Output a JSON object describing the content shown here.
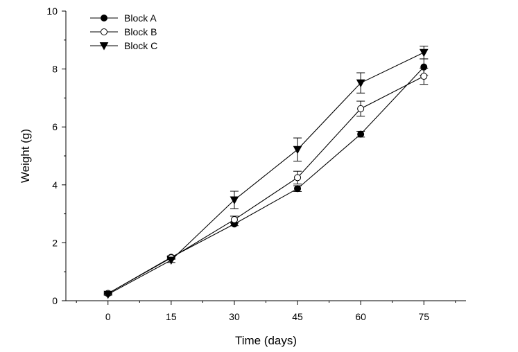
{
  "chart_data": {
    "type": "line",
    "title": "",
    "xlabel": "Time (days)",
    "ylabel": "Weight (g)",
    "x": [
      0,
      15,
      30,
      45,
      60,
      75
    ],
    "xlim": [
      -10,
      85
    ],
    "ylim": [
      0,
      10
    ],
    "xticks": [
      0,
      15,
      30,
      45,
      60,
      75
    ],
    "yticks": [
      0,
      2,
      4,
      6,
      8,
      10
    ],
    "grid": false,
    "legend_position": "top-left",
    "series": [
      {
        "name": "Block A",
        "marker": "filled-circle",
        "values": [
          0.25,
          1.5,
          2.65,
          3.87,
          5.75,
          8.07
        ],
        "errors": [
          0.03,
          0.05,
          0.06,
          0.1,
          0.1,
          0.28
        ]
      },
      {
        "name": "Block B",
        "marker": "open-circle",
        "values": [
          0.25,
          1.48,
          2.8,
          4.25,
          6.63,
          7.75
        ],
        "errors": [
          0.03,
          0.05,
          0.12,
          0.22,
          0.26,
          0.28
        ]
      },
      {
        "name": "Block C",
        "marker": "filled-triangle-down",
        "values": [
          0.22,
          1.4,
          3.48,
          5.22,
          7.52,
          8.57
        ],
        "errors": [
          0.03,
          0.08,
          0.3,
          0.4,
          0.35,
          0.22
        ]
      }
    ]
  }
}
